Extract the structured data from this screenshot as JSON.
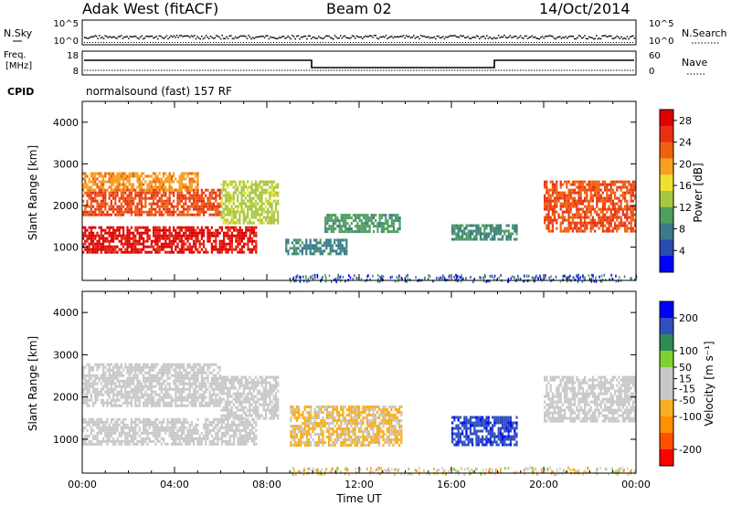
{
  "header": {
    "station": "Adak West (fitACF)",
    "beam": "Beam 02",
    "date": "14/Oct/2014"
  },
  "noise_panel": {
    "left_label": "N.Sky",
    "right_label": "N.Search",
    "left_ticks": [
      "10^5",
      "10^0"
    ],
    "right_ticks": [
      "10^5",
      "10^0"
    ]
  },
  "freq_panel": {
    "left_label_1": "Freq.",
    "left_label_2": "[MHz]",
    "right_label": "Nave",
    "left_ticks": [
      "18",
      "8"
    ],
    "right_ticks": [
      "60",
      "0"
    ],
    "cpid_label": "CPID",
    "cpid_text": "normalsound (fast) 157 RF"
  },
  "colors": {
    "power_scale": [
      "#0000ff",
      "#2b4bb0",
      "#3a7a8a",
      "#4f9f5f",
      "#a8c840",
      "#f0e030",
      "#f8a020",
      "#f06010",
      "#e83010",
      "#e00000"
    ],
    "velocity_scale": [
      "#ff0000",
      "#ff5000",
      "#ff9000",
      "#f8b020",
      "#c8c8c8",
      "#c8c8c8",
      "#80d030",
      "#2e8b57",
      "#3050c0",
      "#0000ff"
    ]
  },
  "chart_data": [
    {
      "type": "heatmap",
      "name": "Power",
      "xlabel": "",
      "ylabel": "Slant Range [km]",
      "x_range_hours": [
        0,
        24
      ],
      "ylim": [
        200,
        4500
      ],
      "y_ticks": [
        1000,
        2000,
        3000,
        4000
      ],
      "colorbar_label": "Power [dB]",
      "colorbar_ticks": [
        4,
        8,
        12,
        16,
        20,
        24,
        28
      ],
      "colorbar_range": [
        0,
        30
      ],
      "regions": [
        {
          "t0": 0.0,
          "t1": 7.5,
          "r0": 850,
          "r1": 1500,
          "value": 28
        },
        {
          "t0": 0.0,
          "t1": 6.0,
          "r0": 1800,
          "r1": 2400,
          "value": 24
        },
        {
          "t0": 0.0,
          "t1": 5.0,
          "r0": 2400,
          "r1": 2800,
          "value": 20
        },
        {
          "t0": 6.0,
          "t1": 8.5,
          "r0": 1600,
          "r1": 2600,
          "value": 14
        },
        {
          "t0": 8.8,
          "t1": 11.5,
          "r0": 850,
          "r1": 1200,
          "value": 8
        },
        {
          "t0": 10.5,
          "t1": 13.8,
          "r0": 1400,
          "r1": 1800,
          "value": 10
        },
        {
          "t0": 16.0,
          "t1": 18.8,
          "r0": 1200,
          "r1": 1550,
          "value": 9
        },
        {
          "t0": 20.0,
          "t1": 24.0,
          "r0": 1400,
          "r1": 2600,
          "value": 24
        }
      ]
    },
    {
      "type": "heatmap",
      "name": "Velocity",
      "xlabel": "Time UT",
      "ylabel": "Slant Range [km]",
      "x_tick_labels": [
        "00:00",
        "04:00",
        "08:00",
        "12:00",
        "16:00",
        "20:00",
        "00:00"
      ],
      "x_range_hours": [
        0,
        24
      ],
      "ylim": [
        200,
        4500
      ],
      "y_ticks": [
        1000,
        2000,
        3000,
        4000
      ],
      "colorbar_label": "Velocity [m s⁻¹]",
      "colorbar_ticks": [
        200,
        100,
        50,
        15,
        -15,
        -50,
        -100,
        -200
      ],
      "colorbar_range": [
        -250,
        250
      ],
      "regions": [
        {
          "t0": 0.0,
          "t1": 7.5,
          "r0": 900,
          "r1": 1500,
          "value": 0
        },
        {
          "t0": 0.0,
          "t1": 6.0,
          "r0": 1800,
          "r1": 2800,
          "value": 0
        },
        {
          "t0": 6.0,
          "t1": 8.5,
          "r0": 1500,
          "r1": 2500,
          "value": 0
        },
        {
          "t0": 9.0,
          "t1": 13.8,
          "r0": 850,
          "r1": 1800,
          "value": -60
        },
        {
          "t0": 16.0,
          "t1": 18.8,
          "r0": 900,
          "r1": 1550,
          "value": 180
        },
        {
          "t0": 20.0,
          "t1": 24.0,
          "r0": 1400,
          "r1": 2500,
          "value": 0
        }
      ]
    }
  ]
}
